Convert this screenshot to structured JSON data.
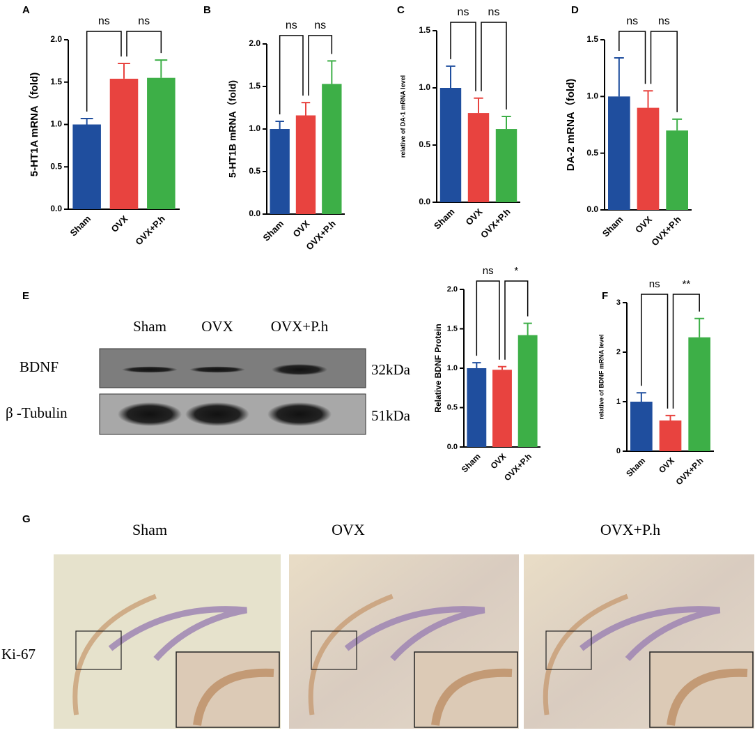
{
  "chart_data": [
    {
      "type": "bar",
      "panel": "A",
      "ylabel": "5-HT1A mRNA（fold)",
      "categories": [
        "Sham",
        "OVX",
        "OVX+P.h"
      ],
      "values": [
        1.0,
        1.54,
        1.55
      ],
      "errors": [
        0.07,
        0.18,
        0.21
      ],
      "colors": [
        "#1f4e9e",
        "#e8433f",
        "#3daf47"
      ],
      "ylim": [
        0,
        2
      ],
      "yticks": [
        {
          "value": 0,
          "label": "0.0"
        },
        {
          "value": 0.5,
          "label": "0.5"
        },
        {
          "value": 1,
          "label": "1.0"
        },
        {
          "value": 1.5,
          "label": "1.5"
        },
        {
          "value": 2,
          "label": "2.0"
        }
      ],
      "comparisons": [
        {
          "from": 0,
          "to": 1,
          "label": "ns"
        },
        {
          "from": 1,
          "to": 2,
          "label": "ns"
        }
      ]
    },
    {
      "type": "bar",
      "panel": "B",
      "ylabel": "5-HT1B mRNA（fold)",
      "categories": [
        "Sham",
        "OVX",
        "OVX+P.h"
      ],
      "values": [
        1.0,
        1.16,
        1.53
      ],
      "errors": [
        0.09,
        0.15,
        0.27
      ],
      "colors": [
        "#1f4e9e",
        "#e8433f",
        "#3daf47"
      ],
      "ylim": [
        0,
        2
      ],
      "yticks": [
        {
          "value": 0,
          "label": "0.0"
        },
        {
          "value": 0.5,
          "label": "0.5"
        },
        {
          "value": 1,
          "label": "1.0"
        },
        {
          "value": 1.5,
          "label": "1.5"
        },
        {
          "value": 2,
          "label": "2.0"
        }
      ],
      "comparisons": [
        {
          "from": 0,
          "to": 1,
          "label": "ns"
        },
        {
          "from": 1,
          "to": 2,
          "label": "ns"
        }
      ]
    },
    {
      "type": "bar",
      "panel": "C",
      "ylabel": "relative of DA-1 mRNA  level",
      "categories": [
        "Sham",
        "OVX",
        "OVX+P.h"
      ],
      "values": [
        1.0,
        0.78,
        0.64
      ],
      "errors": [
        0.19,
        0.13,
        0.11
      ],
      "colors": [
        "#1f4e9e",
        "#e8433f",
        "#3daf47"
      ],
      "ylim": [
        0,
        1.5
      ],
      "yticks": [
        {
          "value": 0,
          "label": "0.0"
        },
        {
          "value": 0.5,
          "label": "0.5"
        },
        {
          "value": 1,
          "label": "1.0"
        },
        {
          "value": 1.5,
          "label": "1.5"
        }
      ],
      "comparisons": [
        {
          "from": 0,
          "to": 1,
          "label": "ns"
        },
        {
          "from": 1,
          "to": 2,
          "label": "ns"
        }
      ]
    },
    {
      "type": "bar",
      "panel": "D",
      "ylabel": "DA-2 mRNA（fold)",
      "categories": [
        "Sham",
        "OVX",
        "OVX+P.h"
      ],
      "values": [
        1.0,
        0.9,
        0.7
      ],
      "errors": [
        0.34,
        0.15,
        0.1
      ],
      "colors": [
        "#1f4e9e",
        "#e8433f",
        "#3daf47"
      ],
      "ylim": [
        0,
        1.5
      ],
      "yticks": [
        {
          "value": 0,
          "label": "0.0"
        },
        {
          "value": 0.5,
          "label": "0.5"
        },
        {
          "value": 1,
          "label": "1.0"
        },
        {
          "value": 1.5,
          "label": "1.5"
        }
      ],
      "comparisons": [
        {
          "from": 0,
          "to": 1,
          "label": "ns"
        },
        {
          "from": 1,
          "to": 2,
          "label": "ns"
        }
      ]
    },
    {
      "type": "bar",
      "ylabel": "Relative BDNF Protein",
      "categories": [
        "Sham",
        "OVX",
        "OVX+P.h"
      ],
      "values": [
        1.0,
        0.98,
        1.42
      ],
      "errors": [
        0.07,
        0.04,
        0.15
      ],
      "colors": [
        "#1f4e9e",
        "#e8433f",
        "#3daf47"
      ],
      "ylim": [
        0,
        2
      ],
      "yticks": [
        {
          "value": 0,
          "label": "0.0"
        },
        {
          "value": 0.5,
          "label": "0.5"
        },
        {
          "value": 1,
          "label": "1.0"
        },
        {
          "value": 1.5,
          "label": "1.5"
        },
        {
          "value": 2,
          "label": "2.0"
        }
      ],
      "comparisons": [
        {
          "from": 0,
          "to": 1,
          "label": "ns"
        },
        {
          "from": 1,
          "to": 2,
          "label": "*"
        }
      ]
    },
    {
      "type": "bar",
      "panel": "F",
      "ylabel": "relative of BDNF mRNA  level",
      "categories": [
        "Sham",
        "OVX",
        "OVX+P.h"
      ],
      "values": [
        1.0,
        0.62,
        2.3
      ],
      "errors": [
        0.18,
        0.1,
        0.38
      ],
      "colors": [
        "#1f4e9e",
        "#e8433f",
        "#3daf47"
      ],
      "ylim": [
        0,
        3
      ],
      "yticks": [
        0,
        1,
        2,
        3
      ],
      "comparisons": [
        {
          "from": 0,
          "to": 1,
          "label": "ns"
        },
        {
          "from": 1,
          "to": 2,
          "label": "**"
        }
      ]
    }
  ],
  "blot": {
    "panel": "E",
    "lanes": [
      "Sham",
      "OVX",
      "OVX+P.h"
    ],
    "rows": [
      {
        "label": "BDNF",
        "size": "32kDa"
      },
      {
        "label": "β -Tubulin",
        "size": "51kDa"
      }
    ]
  },
  "histology": {
    "panel": "G",
    "groups": [
      "Sham",
      "OVX",
      "OVX+P.h"
    ],
    "row_label": "Ki-67"
  }
}
